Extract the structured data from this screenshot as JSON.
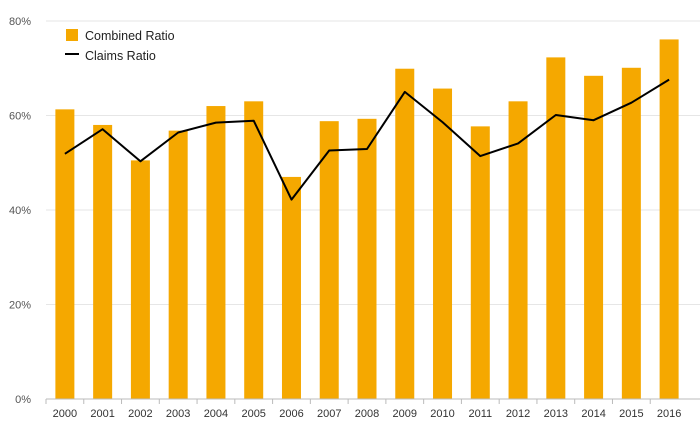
{
  "chart_data": {
    "type": "bar+line",
    "categories": [
      "2000",
      "2001",
      "2002",
      "2003",
      "2004",
      "2005",
      "2006",
      "2007",
      "2008",
      "2009",
      "2010",
      "2011",
      "2012",
      "2013",
      "2014",
      "2015",
      "2016"
    ],
    "series": [
      {
        "name": "Combined Ratio",
        "type": "bar",
        "values": [
          61.3,
          58.0,
          50.5,
          56.8,
          62.0,
          63.0,
          47.0,
          58.8,
          59.3,
          69.9,
          65.7,
          57.7,
          63.0,
          72.3,
          68.4,
          70.1,
          76.1
        ]
      },
      {
        "name": "Claims Ratio",
        "type": "line",
        "values": [
          51.9,
          57.1,
          50.3,
          56.4,
          58.5,
          58.9,
          42.2,
          52.6,
          52.9,
          65.0,
          58.6,
          51.4,
          54.1,
          60.1,
          59.0,
          62.7,
          67.6
        ]
      }
    ],
    "yaxis": {
      "ticks": [
        "0%",
        "20%",
        "40%",
        "60%",
        "80%"
      ],
      "ylim": [
        0,
        80
      ],
      "format": "percent"
    },
    "grid": true,
    "legend": "top-left",
    "colors": {
      "bar": "#F5A800",
      "line": "#000000",
      "grid": "#E6E6E6",
      "axis": "#BBBBBB"
    }
  }
}
